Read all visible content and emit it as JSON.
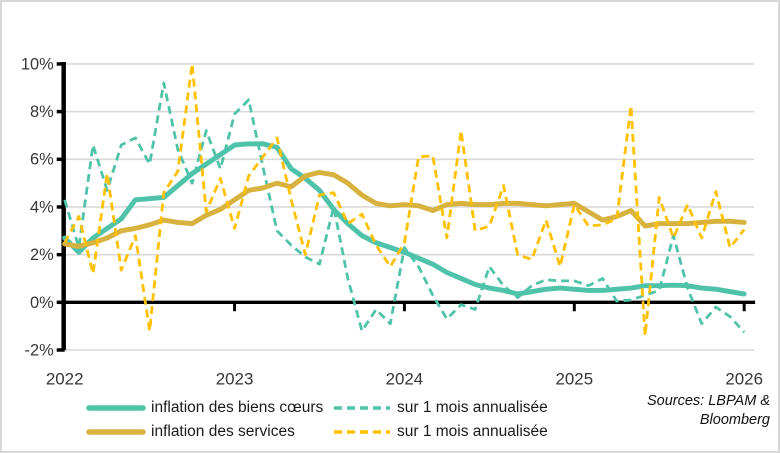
{
  "figure": {
    "source_line1": "Sources: LBPAM &",
    "source_line2": "Bloomberg"
  },
  "colors": {
    "teal": "#4fc3a9",
    "gold_solid": "#d8b23f",
    "gold_dashed": "#ffc000",
    "axis_black": "#000000",
    "gridline_gray": "#d9d9d9",
    "label_gray": "#363636"
  },
  "chart_data": {
    "type": "line",
    "title": "",
    "xlabel": "",
    "ylabel": "",
    "x_unit": "month",
    "x_start": "2022-01",
    "x_end": "2026-01",
    "points_per_series": 49,
    "x_tick_labels": [
      "2022",
      "2023",
      "2024",
      "2025",
      "2026"
    ],
    "y_tick_labels": [
      "10%",
      "8%",
      "6%",
      "4%",
      "2%",
      "0%",
      "-2%"
    ],
    "ylim": [
      -2,
      10
    ],
    "grid": "horizontal",
    "legend_position": "bottom-left",
    "series": [
      {
        "key": "inflation-biens-coeurs",
        "name": "inflation des biens cœurs",
        "style": "solid",
        "color": "#4fc3a9",
        "values": [
          2.7,
          2.1,
          2.7,
          3.1,
          3.5,
          4.3,
          4.35,
          4.4,
          4.9,
          5.4,
          5.8,
          6.2,
          6.6,
          6.65,
          6.65,
          6.5,
          5.6,
          5.2,
          4.7,
          3.9,
          3.3,
          2.8,
          2.5,
          2.3,
          2.1,
          1.85,
          1.6,
          1.25,
          1.0,
          0.75,
          0.6,
          0.5,
          0.35,
          0.45,
          0.55,
          0.6,
          0.55,
          0.5,
          0.5,
          0.55,
          0.6,
          0.7,
          0.7,
          0.72,
          0.7,
          0.6,
          0.55,
          0.45,
          0.35
        ]
      },
      {
        "key": "biens-coeurs-1-mois-annualisee",
        "name": "sur 1 mois annualisée",
        "style": "dashed",
        "color": "#4fc3a9",
        "values": [
          4.3,
          2.3,
          6.6,
          4.7,
          6.6,
          6.9,
          5.8,
          9.2,
          6.4,
          5.0,
          7.2,
          5.6,
          7.9,
          8.5,
          5.7,
          3.0,
          2.4,
          1.9,
          1.6,
          4.0,
          1.0,
          -1.2,
          -0.3,
          -0.9,
          2.3,
          1.5,
          0.3,
          -0.7,
          -0.1,
          -0.3,
          1.5,
          0.7,
          0.2,
          0.7,
          0.95,
          0.9,
          0.9,
          0.7,
          1.0,
          0.05,
          0.1,
          0.3,
          0.5,
          2.8,
          0.6,
          -0.9,
          -0.2,
          -0.6,
          -1.25
        ]
      },
      {
        "key": "inflation-services",
        "name": "inflation des services",
        "style": "solid",
        "color": "#d8b23f",
        "values": [
          2.45,
          2.35,
          2.5,
          2.7,
          3.0,
          3.1,
          3.25,
          3.45,
          3.35,
          3.3,
          3.65,
          3.9,
          4.3,
          4.7,
          4.8,
          5.0,
          4.85,
          5.3,
          5.45,
          5.35,
          5.0,
          4.5,
          4.15,
          4.05,
          4.1,
          4.05,
          3.85,
          4.1,
          4.15,
          4.1,
          4.1,
          4.15,
          4.15,
          4.1,
          4.05,
          4.1,
          4.15,
          3.8,
          3.45,
          3.6,
          3.85,
          3.2,
          3.3,
          3.3,
          3.3,
          3.35,
          3.4,
          3.4,
          3.35
        ]
      },
      {
        "key": "services-1-mois-annualisee",
        "name": "sur 1 mois annualisée",
        "style": "dashed",
        "color": "#ffc000",
        "values": [
          2.5,
          3.6,
          1.2,
          5.4,
          1.35,
          2.8,
          -1.2,
          4.6,
          5.5,
          10.0,
          3.8,
          5.2,
          3.1,
          5.3,
          6.1,
          6.9,
          4.3,
          2.0,
          4.5,
          4.6,
          3.3,
          3.7,
          2.4,
          1.5,
          2.5,
          6.1,
          6.15,
          2.7,
          7.2,
          3.0,
          3.2,
          4.9,
          2.0,
          1.8,
          3.45,
          1.5,
          4.1,
          3.2,
          3.25,
          3.5,
          8.25,
          -1.4,
          4.4,
          2.7,
          4.1,
          2.7,
          4.65,
          2.3,
          3.05
        ]
      }
    ]
  }
}
